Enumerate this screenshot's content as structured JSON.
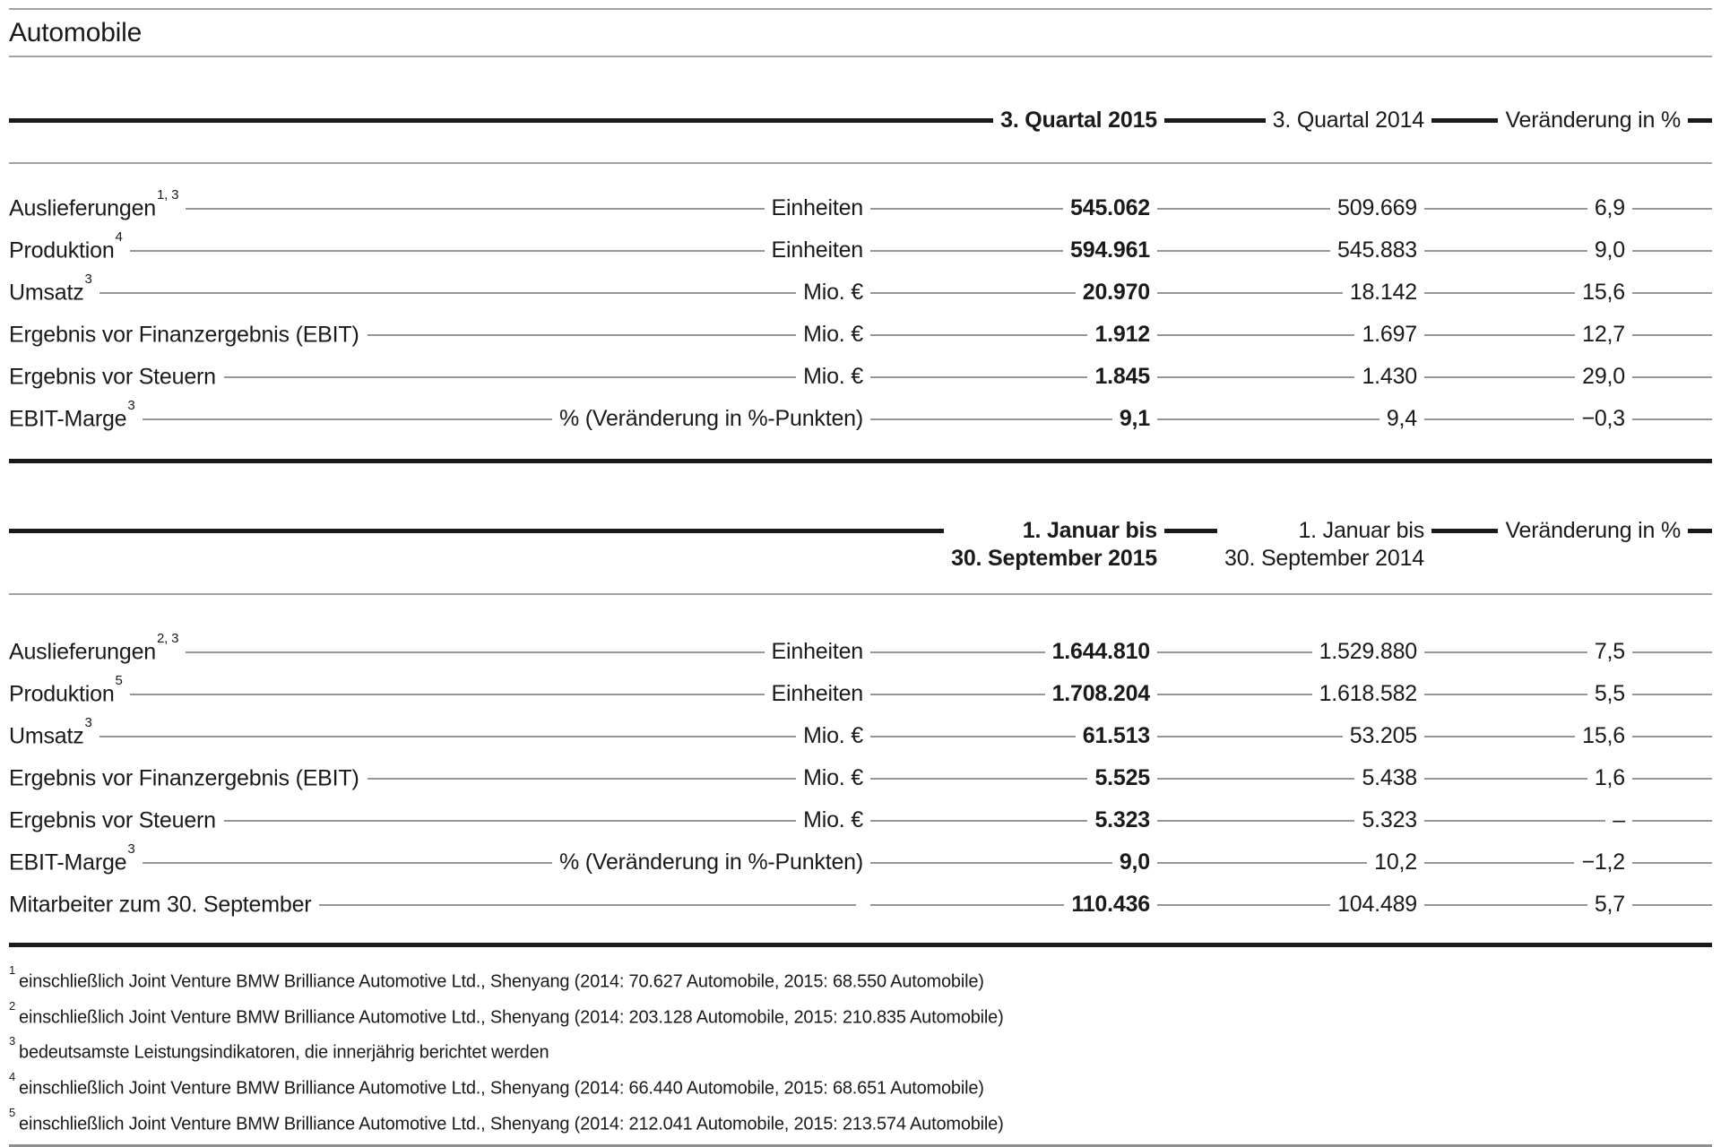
{
  "title": "Automobile",
  "colors": {
    "text": "#1a1a1a",
    "rule_thick": "#1a1a1a",
    "rule_thin": "#a3a3a3",
    "leader_line": "#969696",
    "background": "#ffffff"
  },
  "tables": [
    {
      "header": {
        "col1": "3. Quartal 2015",
        "col2": "3. Quartal 2014",
        "col3": "Veränderung in %"
      },
      "rows": [
        {
          "label": "Auslieferungen",
          "sup": "1, 3",
          "unit": "Einheiten",
          "v2015": "545.062",
          "v2014": "509.669",
          "change": "6,9"
        },
        {
          "label": "Produktion",
          "sup": "4",
          "unit": "Einheiten",
          "v2015": "594.961",
          "v2014": "545.883",
          "change": "9,0"
        },
        {
          "label": "Umsatz",
          "sup": "3",
          "unit": "Mio. €",
          "v2015": "20.970",
          "v2014": "18.142",
          "change": "15,6"
        },
        {
          "label": "Ergebnis vor Finanzergebnis (EBIT)",
          "sup": "",
          "unit": "Mio. €",
          "v2015": "1.912",
          "v2014": "1.697",
          "change": "12,7"
        },
        {
          "label": "Ergebnis vor Steuern",
          "sup": "",
          "unit": "Mio. €",
          "v2015": "1.845",
          "v2014": "1.430",
          "change": "29,0"
        },
        {
          "label": "EBIT-Marge",
          "sup": "3",
          "unit": "% (Veränderung in %-Punkten)",
          "v2015": "9,1",
          "v2014": "9,4",
          "change": "−0,3"
        }
      ]
    },
    {
      "header": {
        "col1_line1": "1. Januar bis",
        "col1_line2": "30. September 2015",
        "col2_line1": "1. Januar bis",
        "col2_line2": "30. September 2014",
        "col3": "Veränderung in %"
      },
      "rows": [
        {
          "label": "Auslieferungen",
          "sup": "2, 3",
          "unit": "Einheiten",
          "v2015": "1.644.810",
          "v2014": "1.529.880",
          "change": "7,5"
        },
        {
          "label": "Produktion",
          "sup": "5",
          "unit": "Einheiten",
          "v2015": "1.708.204",
          "v2014": "1.618.582",
          "change": "5,5"
        },
        {
          "label": "Umsatz",
          "sup": "3",
          "unit": "Mio. €",
          "v2015": "61.513",
          "v2014": "53.205",
          "change": "15,6"
        },
        {
          "label": "Ergebnis vor Finanzergebnis (EBIT)",
          "sup": "",
          "unit": "Mio. €",
          "v2015": "5.525",
          "v2014": "5.438",
          "change": "1,6"
        },
        {
          "label": "Ergebnis vor Steuern",
          "sup": "",
          "unit": "Mio. €",
          "v2015": "5.323",
          "v2014": "5.323",
          "change": "–"
        },
        {
          "label": "EBIT-Marge",
          "sup": "3",
          "unit": "% (Veränderung in %-Punkten)",
          "v2015": "9,0",
          "v2014": "10,2",
          "change": "−1,2"
        },
        {
          "label": "Mitarbeiter zum 30. September",
          "sup": "",
          "unit": "",
          "v2015": "110.436",
          "v2014": "104.489",
          "change": "5,7"
        }
      ]
    }
  ],
  "footnotes": [
    {
      "marker": "1",
      "text": "einschließlich Joint Venture BMW Brilliance Automotive Ltd., Shenyang (2014: 70.627 Automobile, 2015: 68.550 Automobile)"
    },
    {
      "marker": "2",
      "text": "einschließlich Joint Venture BMW Brilliance Automotive Ltd., Shenyang (2014: 203.128 Automobile, 2015: 210.835 Automobile)"
    },
    {
      "marker": "3",
      "text": "bedeutsamste Leistungsindikatoren, die innerjährig berichtet werden"
    },
    {
      "marker": "4",
      "text": "einschließlich Joint Venture BMW Brilliance Automotive Ltd., Shenyang (2014: 66.440 Automobile, 2015: 68.651 Automobile)"
    },
    {
      "marker": "5",
      "text": "einschließlich Joint Venture BMW Brilliance Automotive Ltd., Shenyang (2014: 212.041 Automobile, 2015: 213.574 Automobile)"
    }
  ]
}
